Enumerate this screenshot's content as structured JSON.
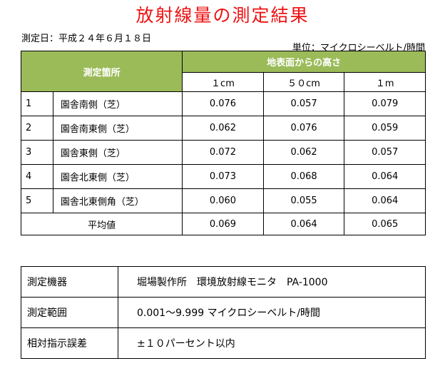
{
  "title": "放射線量の測定結果",
  "date": "測定日：平成２４年６月１８日",
  "unit": "単位：マイクロシーベルト/時間",
  "table": {
    "place_header": "測定箇所",
    "height_header": "地表面からの高さ",
    "heights": [
      "１cm",
      "５０cm",
      "１m"
    ],
    "rows": [
      {
        "no": "1",
        "place": "園舎南側（芝）",
        "values": [
          "0.076",
          "0.057",
          "0.079"
        ]
      },
      {
        "no": "2",
        "place": "園舎南東側（芝）",
        "values": [
          "0.062",
          "0.076",
          "0.059"
        ]
      },
      {
        "no": "3",
        "place": "園舎東側（芝）",
        "values": [
          "0.072",
          "0.062",
          "0.057"
        ]
      },
      {
        "no": "4",
        "place": "園舎北東側（芝）",
        "values": [
          "0.073",
          "0.068",
          "0.064"
        ]
      },
      {
        "no": "5",
        "place": "園舎北東側角（芝）",
        "values": [
          "0.060",
          "0.055",
          "0.064"
        ]
      }
    ],
    "average_label": "平均値",
    "averages": [
      "0.069",
      "0.064",
      "0.065"
    ]
  },
  "info": [
    {
      "key": "測定機器",
      "value": "堀場製作所　環境放射線モニタ　PA-1000"
    },
    {
      "key": "測定範囲",
      "value": "0.001～9.999 マイクロシーベルト/時間"
    },
    {
      "key": "相対指示誤差",
      "value": "±１０パーセント以内"
    }
  ]
}
